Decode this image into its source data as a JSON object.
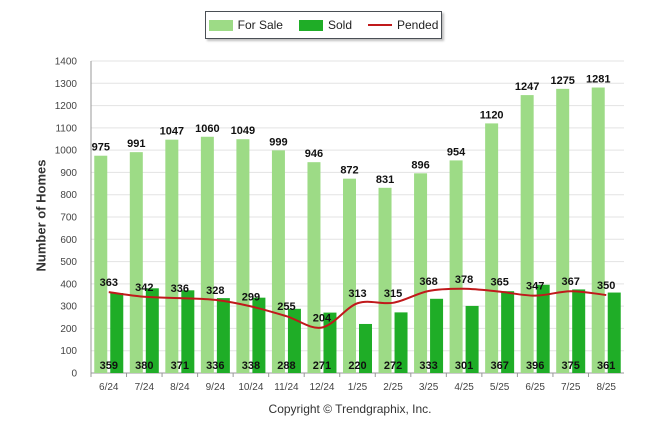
{
  "chart_data": {
    "type": "bar",
    "categories": [
      "6/24",
      "7/24",
      "8/24",
      "9/24",
      "10/24",
      "11/24",
      "12/24",
      "1/25",
      "2/25",
      "3/25",
      "4/25",
      "5/25",
      "6/25",
      "7/25",
      "8/25"
    ],
    "series": [
      {
        "name": "For Sale",
        "type": "bar",
        "color": "#9ddb86",
        "values": [
          975,
          991,
          1047,
          1060,
          1049,
          999,
          946,
          872,
          831,
          896,
          954,
          1120,
          1247,
          1275,
          1281
        ]
      },
      {
        "name": "Sold",
        "type": "bar",
        "color": "#1fad27",
        "values": [
          359,
          380,
          371,
          336,
          338,
          288,
          271,
          220,
          272,
          333,
          301,
          367,
          396,
          375,
          361
        ]
      },
      {
        "name": "Pended",
        "type": "line",
        "color": "#c0191b",
        "values": [
          363,
          342,
          336,
          328,
          299,
          255,
          204,
          313,
          315,
          368,
          378,
          365,
          347,
          367,
          350
        ]
      }
    ],
    "ylabel": "Number of Homes",
    "xlabel": "",
    "ylim": [
      0,
      1400
    ],
    "yticks": [
      0,
      100,
      200,
      300,
      400,
      500,
      600,
      700,
      800,
      900,
      1000,
      1100,
      1200,
      1300,
      1400
    ],
    "grid": true,
    "legend": "top-center"
  },
  "footer": {
    "copyright": "Copyright © Trendgraphix, Inc."
  }
}
